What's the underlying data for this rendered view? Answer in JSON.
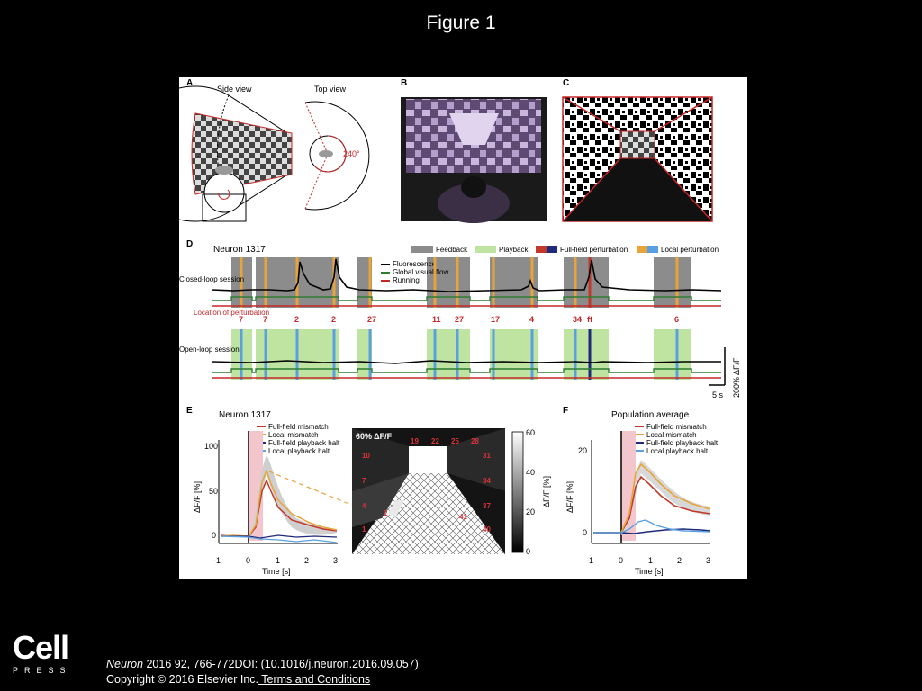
{
  "slide": {
    "title": "Figure 1"
  },
  "panels": {
    "A": {
      "label": "A",
      "side_view": "Side view",
      "top_view": "Top view",
      "angle": "240°"
    },
    "B": {
      "label": "B"
    },
    "C": {
      "label": "C"
    },
    "D": {
      "label": "D",
      "neuron": "Neuron 1317",
      "legend_top": {
        "feedback": "Feedback",
        "playback": "Playback",
        "fullfield": "Full-field perturbation",
        "local": "Local perturbation"
      },
      "legend_traces": {
        "fluorescence": "Fluorescence",
        "flow": "Global visual flow",
        "running": "Running"
      },
      "closed_loop": "Closed-loop session",
      "open_loop": "Open-loop session",
      "location_label": "Location of perturbation",
      "locations": [
        "7",
        "7",
        "2",
        "2",
        "27",
        "11",
        "27",
        "17",
        "4",
        "34",
        "ff",
        "6"
      ],
      "scale_time": "5 s",
      "scale_df": "200% ΔF/F"
    },
    "E": {
      "label": "E",
      "neuron": "Neuron 1317",
      "legend": [
        "Full-field mismatch",
        "Local mismatch",
        "Full-field playback halt",
        "Local playback halt"
      ],
      "ylabel": "ΔF/F [%]",
      "xlabel": "Time [s]",
      "yticks": [
        "0",
        "50",
        "100"
      ],
      "xticks": [
        "-1",
        "0",
        "1",
        "2",
        "3"
      ],
      "heatmap_title": "60% ΔF/F",
      "heatmap_numbers": [
        "19",
        "22",
        "25",
        "28",
        "10",
        "31",
        "7",
        "34",
        "4",
        "37",
        "1",
        "40",
        "2",
        "41"
      ],
      "colorbar_ticks": [
        "0",
        "20",
        "40",
        "60"
      ],
      "colorbar_label": "ΔF/F [%]"
    },
    "F": {
      "label": "F",
      "title": "Population average",
      "legend": [
        "Full-field mismatch",
        "Local mismatch",
        "Full-field playback halt",
        "Local playback halt"
      ],
      "ylabel": "ΔF/F [%]",
      "xlabel": "Time [s]",
      "yticks": [
        "0",
        "20"
      ],
      "xticks": [
        "-1",
        "0",
        "1",
        "2",
        "3"
      ]
    }
  },
  "colors": {
    "feedback": "#8c8c8c",
    "playback": "#bfe3a0",
    "fullfield_mismatch": "#c0392b",
    "local_mismatch": "#e8a33a",
    "fullfield_playback": "#1f2a7a",
    "local_playback": "#5aa0e0",
    "flow": "#2e7d32",
    "running": "#c62828"
  },
  "publisher": {
    "name": "Cell",
    "sub": "PRESS"
  },
  "citation": {
    "journal": "Neuron",
    "details": " 2016 92, 766-772DOI: (10.1016/j.neuron.2016.09.057)"
  },
  "copyright": {
    "text": "Copyright © 2016 Elsevier Inc.",
    "link": " Terms and Conditions"
  }
}
